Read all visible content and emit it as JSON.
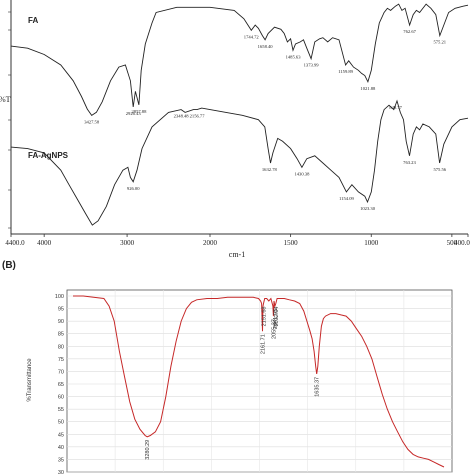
{
  "chart_data": [
    {
      "type": "line",
      "panel_label": "",
      "xlabel": "cm-1",
      "ylabel": "%T",
      "xlim": [
        4400,
        400
      ],
      "x_ticks": [
        "4400.0",
        "4000",
        "3000",
        "2000",
        "1500",
        "1000",
        "500",
        "400.0"
      ],
      "x_tick_values": [
        4400,
        4000,
        3000,
        2000,
        1500,
        1000,
        500,
        400
      ],
      "grid": false,
      "series": [
        {
          "name": "FA",
          "color": "#222222",
          "points": [
            [
              4400,
              78
            ],
            [
              4200,
              76
            ],
            [
              4000,
              70
            ],
            [
              3800,
              60
            ],
            [
              3650,
              45
            ],
            [
              3550,
              30
            ],
            [
              3480,
              18
            ],
            [
              3427,
              12
            ],
            [
              3370,
              15
            ],
            [
              3300,
              25
            ],
            [
              3200,
              45
            ],
            [
              3100,
              58
            ],
            [
              3020,
              60
            ],
            [
              2960,
              45
            ],
            [
              2926,
              20
            ],
            [
              2900,
              35
            ],
            [
              2857,
              22
            ],
            [
              2830,
              55
            ],
            [
              2780,
              80
            ],
            [
              2700,
              100
            ],
            [
              2650,
              110
            ],
            [
              2400,
              115
            ],
            [
              2000,
              115
            ],
            [
              1850,
              112
            ],
            [
              1790,
              104
            ],
            [
              1744,
              93
            ],
            [
              1720,
              98
            ],
            [
              1700,
              95
            ],
            [
              1675,
              88
            ],
            [
              1658,
              84
            ],
            [
              1640,
              90
            ],
            [
              1600,
              96
            ],
            [
              1560,
              94
            ],
            [
              1540,
              90
            ],
            [
              1520,
              82
            ],
            [
              1500,
              85
            ],
            [
              1485,
              74
            ],
            [
              1470,
              80
            ],
            [
              1440,
              82
            ],
            [
              1420,
              84
            ],
            [
              1400,
              76
            ],
            [
              1373,
              66
            ],
            [
              1350,
              82
            ],
            [
              1320,
              85
            ],
            [
              1300,
              86
            ],
            [
              1270,
              82
            ],
            [
              1240,
              86
            ],
            [
              1200,
              84
            ],
            [
              1159,
              60
            ],
            [
              1140,
              64
            ],
            [
              1110,
              58
            ],
            [
              1080,
              55
            ],
            [
              1060,
              52
            ],
            [
              1040,
              50
            ],
            [
              1021,
              44
            ],
            [
              1000,
              55
            ],
            [
              975,
              80
            ],
            [
              950,
              100
            ],
            [
              920,
              110
            ],
            [
              900,
              114
            ],
            [
              880,
              112
            ],
            [
              850,
              116
            ],
            [
              830,
              118
            ],
            [
              810,
              112
            ],
            [
              790,
              114
            ],
            [
              762,
              98
            ],
            [
              740,
              108
            ],
            [
              720,
              112
            ],
            [
              700,
              110
            ],
            [
              660,
              118
            ],
            [
              630,
              114
            ],
            [
              600,
              108
            ],
            [
              575,
              88
            ],
            [
              550,
              98
            ],
            [
              520,
              110
            ],
            [
              480,
              114
            ],
            [
              430,
              116
            ],
            [
              400,
              117
            ]
          ]
        },
        {
          "name": "FA-AgNPS",
          "color": "#222222",
          "points": [
            [
              4400,
              26
            ],
            [
              4200,
              25
            ],
            [
              4000,
              22
            ],
            [
              3800,
              10
            ],
            [
              3700,
              0
            ],
            [
              3600,
              -10
            ],
            [
              3500,
              -20
            ],
            [
              3420,
              -28
            ],
            [
              3350,
              -25
            ],
            [
              3250,
              -15
            ],
            [
              3150,
              0
            ],
            [
              3050,
              10
            ],
            [
              2990,
              12
            ],
            [
              2960,
              5
            ],
            [
              2926,
              2
            ],
            [
              2880,
              10
            ],
            [
              2820,
              25
            ],
            [
              2700,
              40
            ],
            [
              2500,
              50
            ],
            [
              2348,
              52
            ],
            [
              2300,
              50
            ],
            [
              2200,
              52
            ],
            [
              2156,
              52
            ],
            [
              2100,
              53
            ],
            [
              2000,
              52
            ],
            [
              1900,
              50
            ],
            [
              1800,
              48
            ],
            [
              1700,
              45
            ],
            [
              1660,
              40
            ],
            [
              1640,
              25
            ],
            [
              1625,
              15
            ],
            [
              1610,
              22
            ],
            [
              1580,
              32
            ],
            [
              1550,
              30
            ],
            [
              1500,
              25
            ],
            [
              1460,
              18
            ],
            [
              1430,
              12
            ],
            [
              1400,
              18
            ],
            [
              1350,
              20
            ],
            [
              1300,
              15
            ],
            [
              1250,
              10
            ],
            [
              1200,
              5
            ],
            [
              1154,
              -5
            ],
            [
              1120,
              0
            ],
            [
              1080,
              -5
            ],
            [
              1040,
              -8
            ],
            [
              1023,
              -12
            ],
            [
              1000,
              -5
            ],
            [
              980,
              10
            ],
            [
              960,
              30
            ],
            [
              940,
              45
            ],
            [
              920,
              52
            ],
            [
              890,
              55
            ],
            [
              860,
              52
            ],
            [
              840,
              58
            ],
            [
              820,
              50
            ],
            [
              800,
              45
            ],
            [
              783,
              30
            ],
            [
              763,
              20
            ],
            [
              740,
              35
            ],
            [
              720,
              40
            ],
            [
              700,
              38
            ],
            [
              680,
              42
            ],
            [
              640,
              40
            ],
            [
              600,
              35
            ],
            [
              576,
              15
            ],
            [
              550,
              28
            ],
            [
              500,
              40
            ],
            [
              450,
              45
            ],
            [
              400,
              46
            ]
          ]
        }
      ],
      "annotations": [
        {
          "text": "3427.58",
          "x": 3427
        },
        {
          "text": "2926.43",
          "x": 2926
        },
        {
          "text": "2857.88",
          "x": 2857
        },
        {
          "text": "1744.72",
          "x": 1744
        },
        {
          "text": "1658.40",
          "x": 1658
        },
        {
          "text": "1485.63",
          "x": 1485
        },
        {
          "text": "1373.99",
          "x": 1373
        },
        {
          "text": "1159.89",
          "x": 1159
        },
        {
          "text": "1021.88",
          "x": 1021
        },
        {
          "text": "762.67",
          "x": 762
        },
        {
          "text": "575.21",
          "x": 575
        },
        {
          "text": "2348.48",
          "x": 2348
        },
        {
          "text": "2156.77",
          "x": 2156
        },
        {
          "text": "1632.78",
          "x": 1632
        },
        {
          "text": "1430.38",
          "x": 1430
        },
        {
          "text": "1154.09",
          "x": 1154
        },
        {
          "text": "1023.30",
          "x": 1023
        },
        {
          "text": "926.00",
          "x": 2926
        },
        {
          "text": "849.77",
          "x": 849
        },
        {
          "text": "763.23",
          "x": 763
        },
        {
          "text": "575.56",
          "x": 575
        }
      ],
      "series_labels": [
        "FA",
        "FA-AgNPS"
      ]
    },
    {
      "type": "line",
      "panel_label": "(B)",
      "xlabel": "",
      "ylabel": "%Transmittance",
      "xlim": [
        4000,
        400
      ],
      "ylim": [
        30,
        100
      ],
      "y_ticks": [
        30,
        35,
        40,
        45,
        50,
        55,
        60,
        65,
        70,
        75,
        80,
        85,
        90,
        95,
        100
      ],
      "grid": true,
      "series": [
        {
          "name": "",
          "color": "#c62828",
          "points": [
            [
              4000,
              100
            ],
            [
              3900,
              100
            ],
            [
              3800,
              99.5
            ],
            [
              3700,
              99
            ],
            [
              3650,
              96
            ],
            [
              3600,
              90
            ],
            [
              3550,
              78
            ],
            [
              3500,
              68
            ],
            [
              3450,
              58
            ],
            [
              3400,
              51
            ],
            [
              3350,
              47
            ],
            [
              3300,
              44.5
            ],
            [
              3280,
              44
            ],
            [
              3250,
              44.5
            ],
            [
              3200,
              46
            ],
            [
              3150,
              50
            ],
            [
              3100,
              60
            ],
            [
              3050,
              72
            ],
            [
              3000,
              82
            ],
            [
              2950,
              90
            ],
            [
              2900,
              95
            ],
            [
              2850,
              97.5
            ],
            [
              2800,
              98.5
            ],
            [
              2700,
              99
            ],
            [
              2600,
              99
            ],
            [
              2500,
              99.5
            ],
            [
              2400,
              99.5
            ],
            [
              2300,
              99.5
            ],
            [
              2250,
              99.5
            ],
            [
              2200,
              99
            ],
            [
              2180,
              98
            ],
            [
              2170,
              97
            ],
            [
              2161,
              86
            ],
            [
              2156,
              96
            ],
            [
              2151,
              97
            ],
            [
              2140,
              99
            ],
            [
              2120,
              99
            ],
            [
              2100,
              98
            ],
            [
              2080,
              99
            ],
            [
              2060,
              96
            ],
            [
              2055,
              92
            ],
            [
              2050,
              98
            ],
            [
              2041,
              96
            ],
            [
              2032,
              97
            ],
            [
              2020,
              99
            ],
            [
              2000,
              99
            ],
            [
              1950,
              99
            ],
            [
              1900,
              98.5
            ],
            [
              1850,
              98
            ],
            [
              1800,
              97
            ],
            [
              1760,
              94
            ],
            [
              1730,
              90
            ],
            [
              1700,
              86
            ],
            [
              1680,
              83
            ],
            [
              1660,
              78
            ],
            [
              1645,
              72
            ],
            [
              1635,
              69
            ],
            [
              1625,
              72
            ],
            [
              1610,
              80
            ],
            [
              1590,
              88
            ],
            [
              1570,
              91
            ],
            [
              1550,
              92
            ],
            [
              1500,
              93
            ],
            [
              1450,
              93
            ],
            [
              1400,
              92.5
            ],
            [
              1350,
              92
            ],
            [
              1300,
              90
            ],
            [
              1250,
              87
            ],
            [
              1200,
              84
            ],
            [
              1150,
              80
            ],
            [
              1100,
              75
            ],
            [
              1050,
              68
            ],
            [
              1000,
              61
            ],
            [
              950,
              55
            ],
            [
              900,
              50
            ],
            [
              850,
              46
            ],
            [
              800,
              42
            ],
            [
              750,
              39
            ],
            [
              700,
              37
            ],
            [
              650,
              36
            ],
            [
              600,
              35.5
            ],
            [
              550,
              35
            ],
            [
              500,
              34
            ],
            [
              450,
              33
            ],
            [
              400,
              32
            ]
          ]
        }
      ],
      "annotations": [
        {
          "text": "3280.29",
          "x": 3280
        },
        {
          "text": "2161.71",
          "x": 2161
        },
        {
          "text": "2151.68",
          "x": 2151
        },
        {
          "text": "2055.37",
          "x": 2055
        },
        {
          "text": "2041.93",
          "x": 2041
        },
        {
          "text": "2032.04",
          "x": 2032
        },
        {
          "text": "1635.37",
          "x": 1635
        }
      ]
    }
  ]
}
